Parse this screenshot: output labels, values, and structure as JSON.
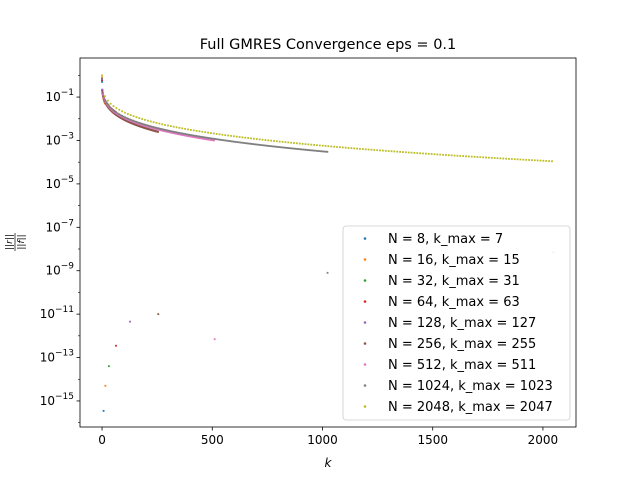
{
  "chart_data": {
    "type": "scatter",
    "title": "Full GMRES Convergence eps = 0.1",
    "xlabel": "k",
    "ylabel": "||r|| / ||f||",
    "xlim": [
      -100,
      2150
    ],
    "ylim_log10": [
      -16.2,
      0.8
    ],
    "yscale": "log",
    "x_ticks": [
      0,
      500,
      1000,
      1500,
      2000
    ],
    "y_ticks_exp": [
      -15,
      -13,
      -11,
      -9,
      -7,
      -5,
      -3,
      -1
    ],
    "grid": false,
    "legend_position": "lower-right",
    "series": [
      {
        "name": "N = 8, k_max = 7",
        "color": "#1f77b4",
        "k_max": 7,
        "final_residual": 3.5e-16,
        "start": 0.5,
        "plateau_end": 0.1
      },
      {
        "name": "N = 16, k_max = 15",
        "color": "#ff7f0e",
        "k_max": 15,
        "final_residual": 5e-15,
        "start": 0.8,
        "plateau_end": 0.05
      },
      {
        "name": "N = 32, k_max = 31",
        "color": "#2ca02c",
        "k_max": 31,
        "final_residual": 4e-14,
        "start": 0.6,
        "plateau_end": 0.04
      },
      {
        "name": "N = 64, k_max = 63",
        "color": "#d62728",
        "k_max": 63,
        "final_residual": 3.5e-13,
        "start": 0.6,
        "plateau_end": 0.02
      },
      {
        "name": "N = 128, k_max = 127",
        "color": "#9467bd",
        "k_max": 127,
        "final_residual": 4.5e-12,
        "start": 0.7,
        "plateau_end": 0.008
      },
      {
        "name": "N = 256, k_max = 255",
        "color": "#8c564b",
        "k_max": 255,
        "final_residual": 1e-11,
        "start": 0.7,
        "plateau_end": 0.0025
      },
      {
        "name": "N = 512, k_max = 511",
        "color": "#e377c2",
        "k_max": 511,
        "final_residual": 7e-13,
        "start": 0.7,
        "plateau_end": 0.001
      },
      {
        "name": "N = 1024, k_max = 1023",
        "color": "#7f7f7f",
        "k_max": 1023,
        "final_residual": 8e-10,
        "start": 0.7,
        "plateau_end": 0.0003
      },
      {
        "name": "N = 2048, k_max = 2047",
        "color": "#bcbd22",
        "k_max": 2047,
        "final_residual": 7e-09,
        "start": 1.0,
        "plateau_end": 0.00011
      }
    ]
  }
}
